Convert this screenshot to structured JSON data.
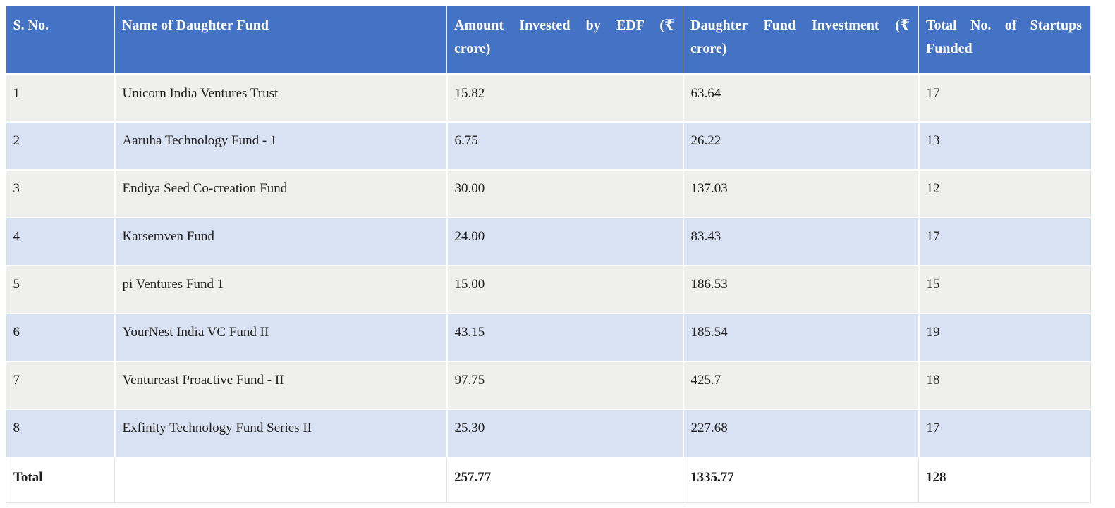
{
  "table": {
    "columns": [
      {
        "line1": "S. No.",
        "line2": ""
      },
      {
        "line1": "Name of Daughter Fund",
        "line2": ""
      },
      {
        "line1": "Amount Invested by EDF (₹",
        "line2": "crore)"
      },
      {
        "line1": "Daughter Fund Investment (₹",
        "line2": "crore)"
      },
      {
        "line1": "Total No. of Startups",
        "line2": "Funded"
      }
    ],
    "rows": [
      [
        "1",
        "Unicorn India Ventures Trust",
        "15.82",
        "63.64",
        "17"
      ],
      [
        "2",
        "Aaruha Technology Fund - 1",
        "6.75",
        "26.22",
        "13"
      ],
      [
        "3",
        "Endiya Seed Co-creation Fund",
        "30.00",
        "137.03",
        "12"
      ],
      [
        "4",
        "Karsemven Fund",
        "24.00",
        "83.43",
        "17"
      ],
      [
        "5",
        "pi Ventures Fund 1",
        "15.00",
        "186.53",
        "15"
      ],
      [
        "6",
        "YourNest India VC Fund II",
        "43.15",
        "185.54",
        "19"
      ],
      [
        "7",
        "Ventureast Proactive Fund - II",
        "97.75",
        "425.7",
        "18"
      ],
      [
        "8",
        "Exfinity Technology Fund Series II",
        "25.30",
        "227.68",
        "17"
      ]
    ],
    "total_row": {
      "label": "Total",
      "fund_name": "",
      "amount_invested": "257.77",
      "fund_investment": "1335.77",
      "startups_funded": "128"
    },
    "colors": {
      "header_bg": "#4472C4",
      "header_text": "#FFFFFF",
      "row_odd_bg": "#EFEFED",
      "row_even_bg": "#D9E2F3",
      "total_bg": "#FFFFFF",
      "body_text": "#1F1F1F"
    }
  }
}
